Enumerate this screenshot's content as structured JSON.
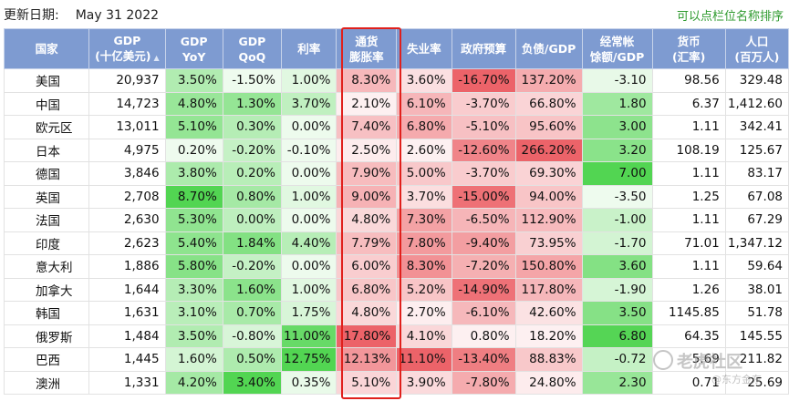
{
  "header": {
    "update_label": "更新日期:",
    "update_date": "May 31 2022",
    "hint": "可以点栏位名称排序"
  },
  "columns": [
    {
      "line1": "国家",
      "line2": ""
    },
    {
      "line1": "GDP",
      "line2": "(十亿美元)"
    },
    {
      "line1": "GDP",
      "line2": "YoY"
    },
    {
      "line1": "GDP",
      "line2": "QoQ"
    },
    {
      "line1": "利率",
      "line2": ""
    },
    {
      "line1": "通货",
      "line2": "膨胀率"
    },
    {
      "line1": "失业率",
      "line2": ""
    },
    {
      "line1": "政府预算",
      "line2": ""
    },
    {
      "line1": "负债/GDP",
      "line2": ""
    },
    {
      "line1": "经常帐",
      "line2": "馀额/GDP"
    },
    {
      "line1": "货币",
      "line2": "(汇率)"
    },
    {
      "line1": "人口",
      "line2": "(百万人)"
    }
  ],
  "sort_indicator": "▲",
  "rows": [
    {
      "country": "美国",
      "gdp": "20,937",
      "yoy": "3.50%",
      "qoq": "-1.50%",
      "rate": "1.00%",
      "inflation": "8.30%",
      "unemployment": "3.60%",
      "budget": "-16.70%",
      "debt": "137.20%",
      "current": "-3.10",
      "currency": "98.56",
      "population": "329.48"
    },
    {
      "country": "中国",
      "gdp": "14,723",
      "yoy": "4.80%",
      "qoq": "1.30%",
      "rate": "3.70%",
      "inflation": "2.10%",
      "unemployment": "6.10%",
      "budget": "-3.70%",
      "debt": "66.80%",
      "current": "1.80",
      "currency": "6.37",
      "population": "1,412.60"
    },
    {
      "country": "欧元区",
      "gdp": "13,011",
      "yoy": "5.10%",
      "qoq": "0.30%",
      "rate": "0.00%",
      "inflation": "7.40%",
      "unemployment": "6.80%",
      "budget": "-5.10%",
      "debt": "95.60%",
      "current": "3.00",
      "currency": "1.11",
      "population": "342.41"
    },
    {
      "country": "日本",
      "gdp": "4,975",
      "yoy": "0.20%",
      "qoq": "-0.20%",
      "rate": "-0.10%",
      "inflation": "2.50%",
      "unemployment": "2.60%",
      "budget": "-12.60%",
      "debt": "266.20%",
      "current": "3.20",
      "currency": "108.19",
      "population": "125.67"
    },
    {
      "country": "德国",
      "gdp": "3,846",
      "yoy": "3.80%",
      "qoq": "0.20%",
      "rate": "0.00%",
      "inflation": "7.90%",
      "unemployment": "5.00%",
      "budget": "-3.70%",
      "debt": "69.30%",
      "current": "7.00",
      "currency": "1.11",
      "population": "83.17"
    },
    {
      "country": "英国",
      "gdp": "2,708",
      "yoy": "8.70%",
      "qoq": "0.80%",
      "rate": "1.00%",
      "inflation": "9.00%",
      "unemployment": "3.70%",
      "budget": "-15.00%",
      "debt": "94.00%",
      "current": "-3.50",
      "currency": "1.25",
      "population": "67.08"
    },
    {
      "country": "法国",
      "gdp": "2,630",
      "yoy": "5.30%",
      "qoq": "0.00%",
      "rate": "0.00%",
      "inflation": "4.80%",
      "unemployment": "7.30%",
      "budget": "-6.50%",
      "debt": "112.90%",
      "current": "-1.00",
      "currency": "1.11",
      "population": "67.29"
    },
    {
      "country": "印度",
      "gdp": "2,623",
      "yoy": "5.40%",
      "qoq": "1.84%",
      "rate": "4.40%",
      "inflation": "7.79%",
      "unemployment": "7.80%",
      "budget": "-9.40%",
      "debt": "73.95%",
      "current": "-1.70",
      "currency": "71.01",
      "population": "1,347.12"
    },
    {
      "country": "意大利",
      "gdp": "1,886",
      "yoy": "5.80%",
      "qoq": "-0.20%",
      "rate": "0.00%",
      "inflation": "6.00%",
      "unemployment": "8.30%",
      "budget": "-7.20%",
      "debt": "150.80%",
      "current": "3.60",
      "currency": "1.11",
      "population": "59.64"
    },
    {
      "country": "加拿大",
      "gdp": "1,644",
      "yoy": "3.30%",
      "qoq": "1.60%",
      "rate": "1.00%",
      "inflation": "6.80%",
      "unemployment": "5.20%",
      "budget": "-14.90%",
      "debt": "117.80%",
      "current": "-1.90",
      "currency": "1.26",
      "population": "38.01"
    },
    {
      "country": "韩国",
      "gdp": "1,631",
      "yoy": "3.10%",
      "qoq": "0.70%",
      "rate": "1.75%",
      "inflation": "4.80%",
      "unemployment": "2.70%",
      "budget": "-6.10%",
      "debt": "42.60%",
      "current": "3.50",
      "currency": "1145.85",
      "population": "51.78"
    },
    {
      "country": "俄罗斯",
      "gdp": "1,484",
      "yoy": "3.50%",
      "qoq": "-0.80%",
      "rate": "11.00%",
      "inflation": "17.80%",
      "unemployment": "4.10%",
      "budget": "0.80%",
      "debt": "18.20%",
      "current": "6.80",
      "currency": "64.35",
      "population": "145.55"
    },
    {
      "country": "巴西",
      "gdp": "1,445",
      "yoy": "1.60%",
      "qoq": "0.50%",
      "rate": "12.75%",
      "inflation": "12.13%",
      "unemployment": "11.10%",
      "budget": "-13.40%",
      "debt": "88.83%",
      "current": "-0.72",
      "currency": "5.69",
      "population": "211.82"
    },
    {
      "country": "澳洲",
      "gdp": "1,331",
      "yoy": "4.20%",
      "qoq": "3.40%",
      "rate": "0.35%",
      "inflation": "5.10%",
      "unemployment": "3.90%",
      "budget": "-7.80%",
      "debt": "24.80%",
      "current": "2.30",
      "currency": "0.71",
      "population": "25.69"
    }
  ],
  "colors": {
    "header_bg": "#7e9bd1",
    "highlight_box": "#e0201c",
    "positive_scale": "#2ecc2e",
    "negative_scale": "#e8434a",
    "hint_text": "#2e9a2e"
  },
  "watermark": {
    "brand": "老虎社区",
    "sub": "@东方金东"
  }
}
